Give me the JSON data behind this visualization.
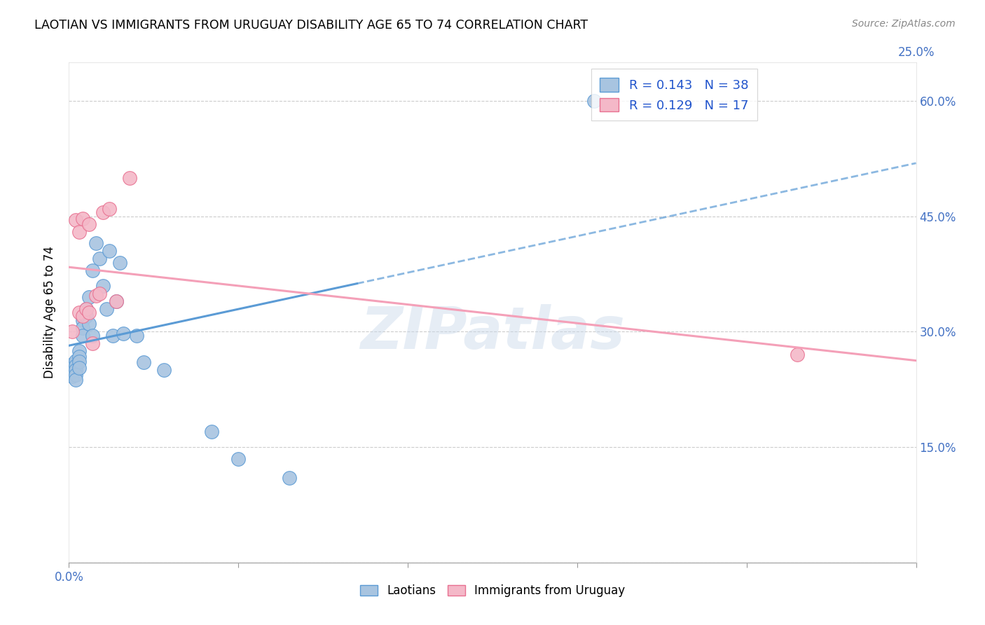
{
  "title": "LAOTIAN VS IMMIGRANTS FROM URUGUAY DISABILITY AGE 65 TO 74 CORRELATION CHART",
  "source": "Source: ZipAtlas.com",
  "ylabel": "Disability Age 65 to 74",
  "xlim": [
    0.0,
    0.25
  ],
  "ylim": [
    0.0,
    0.65
  ],
  "laotian_R": 0.143,
  "laotian_N": 38,
  "uruguay_R": 0.129,
  "uruguay_N": 17,
  "laotian_color": "#a8c4e0",
  "uruguay_color": "#f4b8c8",
  "laotian_line_color": "#5b9bd5",
  "uruguay_line_color": "#f4a0b8",
  "watermark": "ZIPatlas",
  "laotian_x": [
    0.001,
    0.001,
    0.001,
    0.001,
    0.002,
    0.002,
    0.002,
    0.002,
    0.002,
    0.003,
    0.003,
    0.003,
    0.003,
    0.004,
    0.004,
    0.004,
    0.005,
    0.005,
    0.006,
    0.006,
    0.007,
    0.007,
    0.008,
    0.009,
    0.01,
    0.011,
    0.012,
    0.013,
    0.014,
    0.015,
    0.016,
    0.02,
    0.022,
    0.028,
    0.042,
    0.05,
    0.065,
    0.155
  ],
  "laotian_y": [
    0.258,
    0.253,
    0.248,
    0.242,
    0.262,
    0.256,
    0.25,
    0.244,
    0.238,
    0.275,
    0.268,
    0.261,
    0.253,
    0.315,
    0.305,
    0.295,
    0.33,
    0.32,
    0.345,
    0.31,
    0.38,
    0.295,
    0.415,
    0.395,
    0.36,
    0.33,
    0.405,
    0.295,
    0.34,
    0.39,
    0.298,
    0.295,
    0.26,
    0.25,
    0.17,
    0.135,
    0.11,
    0.6
  ],
  "uruguay_x": [
    0.001,
    0.002,
    0.003,
    0.003,
    0.004,
    0.004,
    0.005,
    0.006,
    0.006,
    0.007,
    0.008,
    0.009,
    0.01,
    0.012,
    0.014,
    0.018,
    0.215
  ],
  "uruguay_y": [
    0.3,
    0.445,
    0.43,
    0.325,
    0.32,
    0.447,
    0.33,
    0.325,
    0.44,
    0.285,
    0.347,
    0.35,
    0.455,
    0.46,
    0.34,
    0.5,
    0.27
  ]
}
